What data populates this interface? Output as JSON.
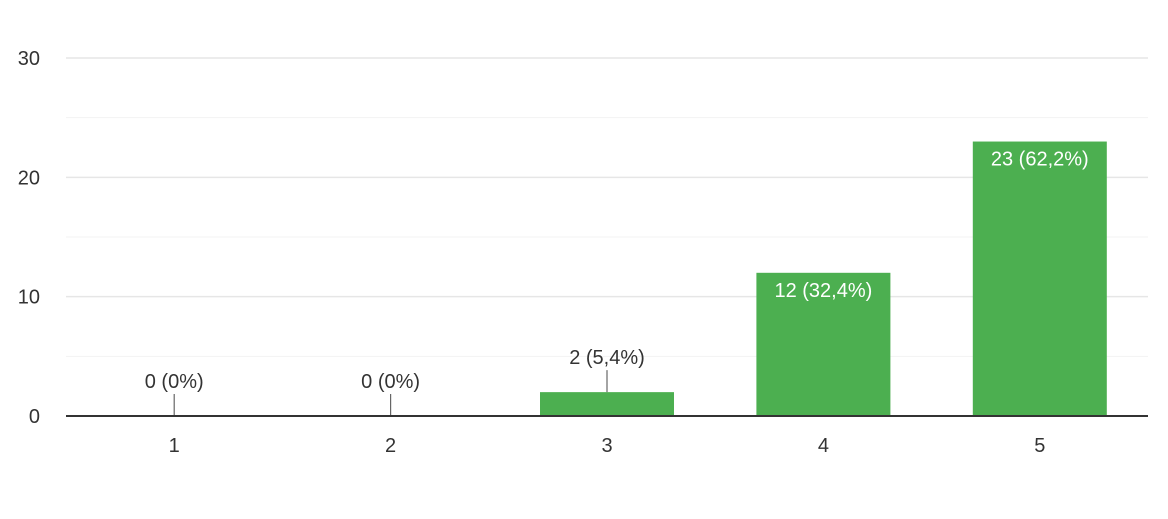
{
  "chart_data": {
    "type": "bar",
    "categories": [
      "1",
      "2",
      "3",
      "4",
      "5"
    ],
    "values": [
      0,
      0,
      2,
      12,
      23
    ],
    "data_labels": [
      "0 (0%)",
      "0 (0%)",
      "2 (5,4%)",
      "12 (32,4%)",
      "23 (62,2%)"
    ],
    "y_ticks": [
      "0",
      "10",
      "20",
      "30"
    ],
    "ylim": [
      0,
      30
    ],
    "title": "",
    "xlabel": "",
    "ylabel": "",
    "grid": true,
    "legend": "none",
    "colors": {
      "bar": "#4caf50",
      "grid_major": "#e6e6e6",
      "grid_minor": "#f3f3f3",
      "axis": "#333333",
      "text": "#333333",
      "label_inside": "#ffffff",
      "leader": "#666666"
    }
  }
}
